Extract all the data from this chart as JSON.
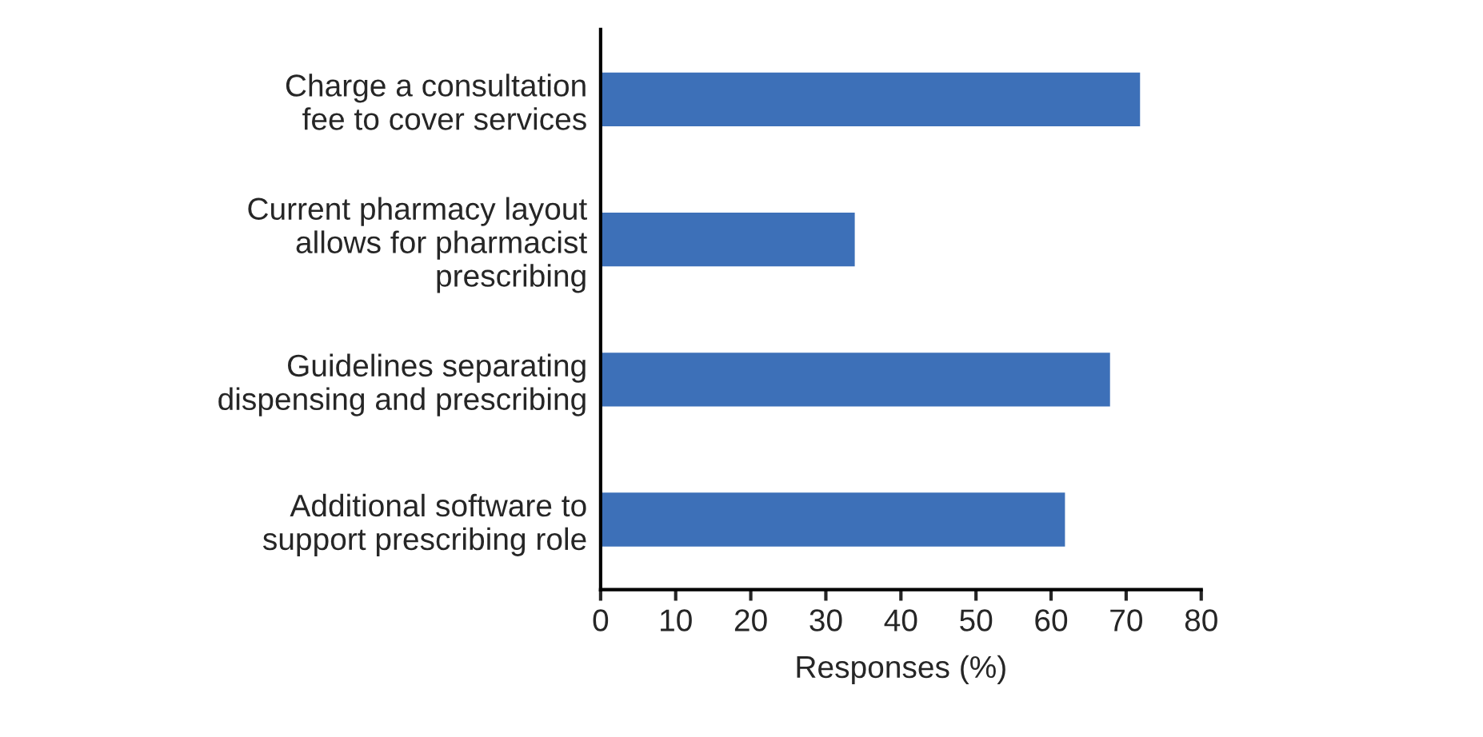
{
  "chart_data": {
    "type": "bar",
    "orientation": "horizontal",
    "xlabel": "Responses (%)",
    "categories": [
      "Charge a consultation\nfee to cover services",
      "Current pharmacy layout\nallows for pharmacist\nprescribing",
      "Guidelines separating\ndispensing and prescribing",
      "Additional software to\nsupport prescribing role"
    ],
    "values": [
      72,
      34,
      68,
      62
    ],
    "color": "#3d70b8",
    "xlim": [
      0,
      80
    ],
    "xticks": [
      0,
      10,
      20,
      30,
      40,
      50,
      60,
      70,
      80
    ],
    "grid": false,
    "legend": false
  }
}
